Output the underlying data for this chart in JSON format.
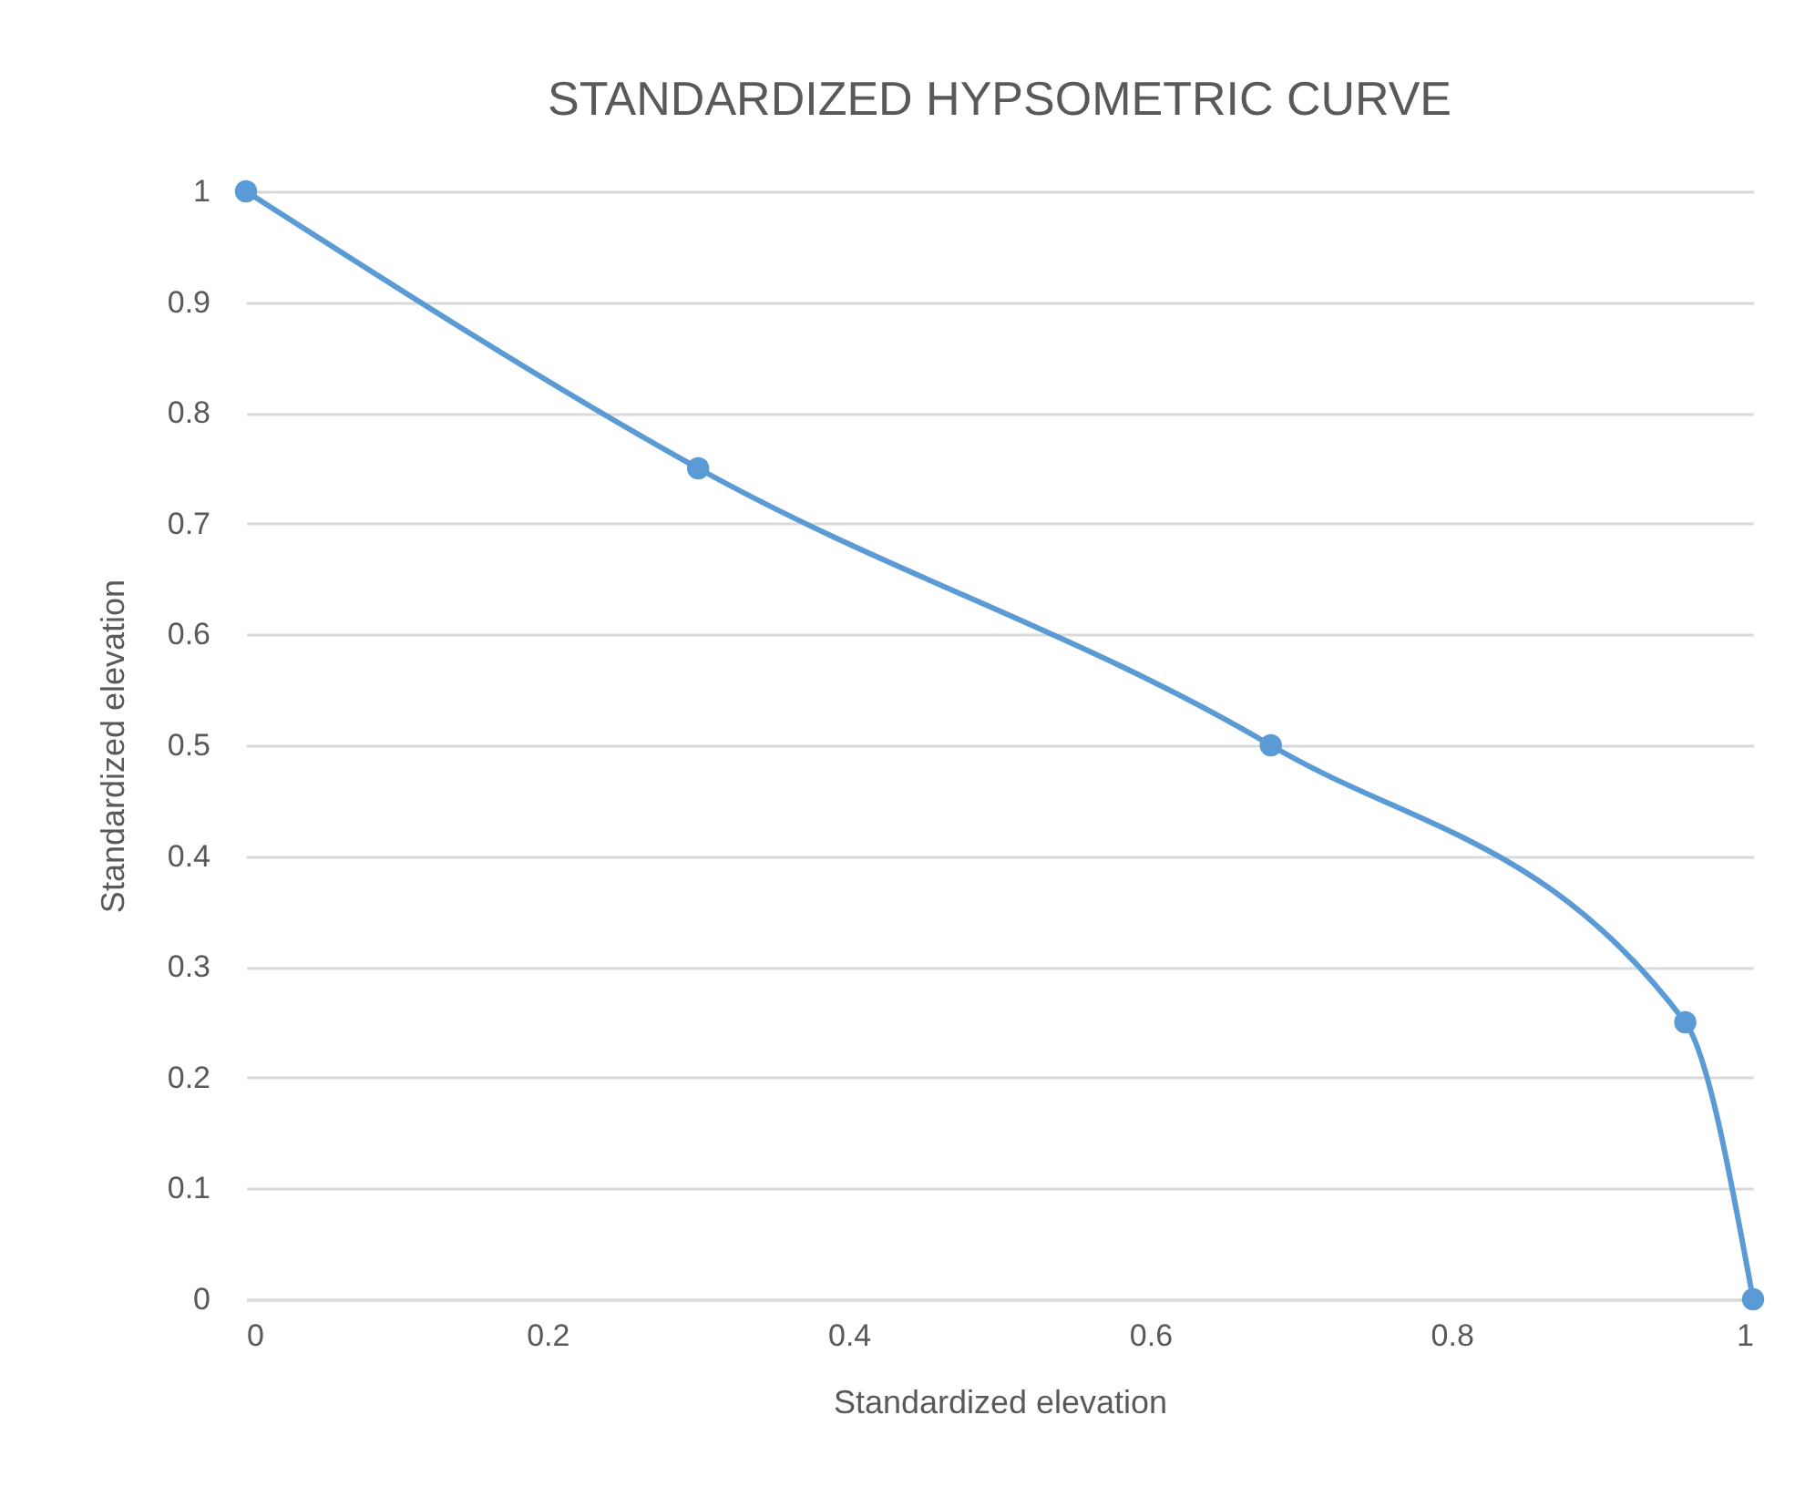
{
  "chart_data": {
    "type": "line",
    "title": "STANDARDIZED HYPSOMETRIC CURVE",
    "xlabel": "Standardized elevation",
    "ylabel": "Standardized elevation",
    "x": [
      0,
      0.3,
      0.68,
      0.955,
      1
    ],
    "series": [
      {
        "color": "#5b9bd5",
        "values": [
          1,
          0.75,
          0.5,
          0.25,
          0
        ]
      }
    ],
    "xlim": [
      0,
      1
    ],
    "xticks": [
      0,
      0.2,
      0.4,
      0.6,
      0.8,
      1
    ],
    "ylim": [
      0,
      1
    ],
    "yticks": [
      0,
      0.1,
      0.2,
      0.3,
      0.4,
      0.5,
      0.6,
      0.7,
      0.8,
      0.9,
      1
    ],
    "grid": "y",
    "marker": "circle",
    "line_style": "solid"
  }
}
